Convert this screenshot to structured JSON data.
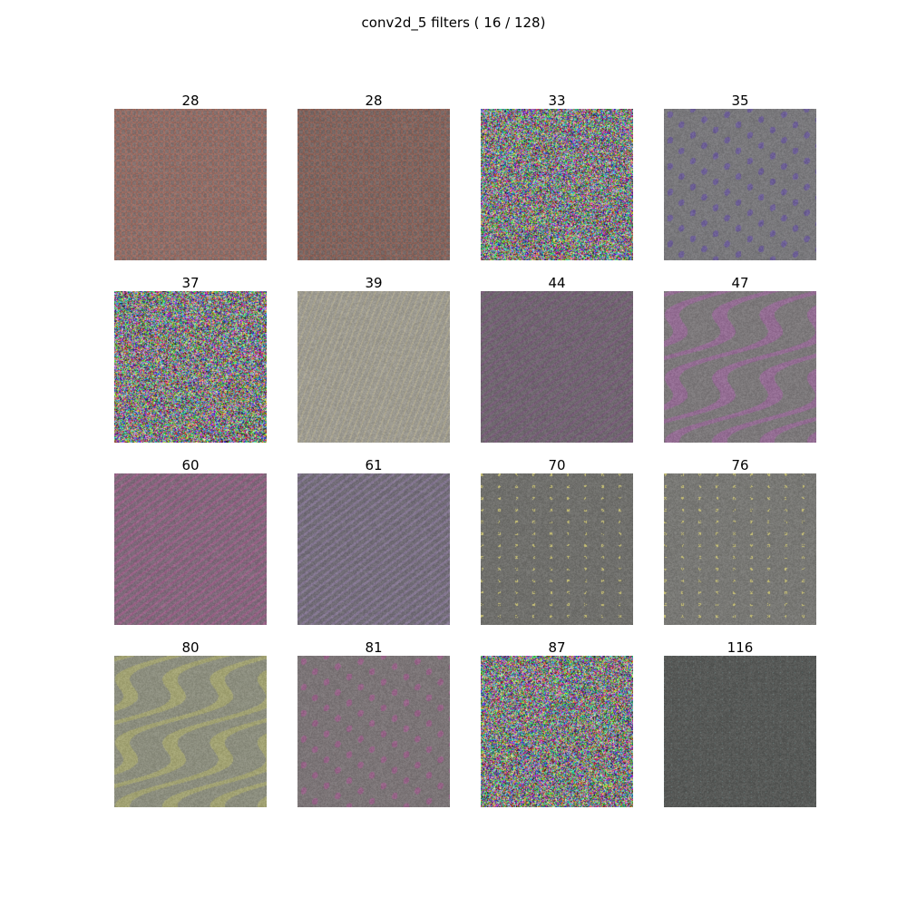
{
  "figure_title": "conv2d_5 filters ( 16 / 128)",
  "filters": [
    {
      "label": "28",
      "pattern": "grid",
      "base": "#7a7070",
      "accent": "#b06a5a"
    },
    {
      "label": "28",
      "pattern": "grid",
      "base": "#6e6868",
      "accent": "#a06050"
    },
    {
      "label": "33",
      "pattern": "noise",
      "base": "#888888",
      "accent": "#888888"
    },
    {
      "label": "35",
      "pattern": "blobs",
      "base": "#7a7a7a",
      "accent": "#6a5a9a"
    },
    {
      "label": "37",
      "pattern": "noise",
      "base": "#888888",
      "accent": "#888888"
    },
    {
      "label": "39",
      "pattern": "streaks",
      "base": "#9a9890",
      "accent": "#b8b090"
    },
    {
      "label": "44",
      "pattern": "diagonal",
      "base": "#6e6a6e",
      "accent": "#7a5a7a"
    },
    {
      "label": "47",
      "pattern": "waves",
      "base": "#7a7a78",
      "accent": "#9a6a9a"
    },
    {
      "label": "60",
      "pattern": "diagonal",
      "base": "#7a6a78",
      "accent": "#a0608a"
    },
    {
      "label": "61",
      "pattern": "diagonal",
      "base": "#6e6a72",
      "accent": "#8a7a9a"
    },
    {
      "label": "70",
      "pattern": "dots",
      "base": "#6e6e6c",
      "accent": "#c8c070"
    },
    {
      "label": "76",
      "pattern": "dots",
      "base": "#777775",
      "accent": "#c8c070"
    },
    {
      "label": "80",
      "pattern": "waves",
      "base": "#8a8c80",
      "accent": "#a8a870"
    },
    {
      "label": "81",
      "pattern": "blobs",
      "base": "#7a7676",
      "accent": "#9a608a"
    },
    {
      "label": "87",
      "pattern": "noise",
      "base": "#888888",
      "accent": "#888888"
    },
    {
      "label": "116",
      "pattern": "fine",
      "base": "#575957",
      "accent": "#6a8a8a"
    }
  ]
}
